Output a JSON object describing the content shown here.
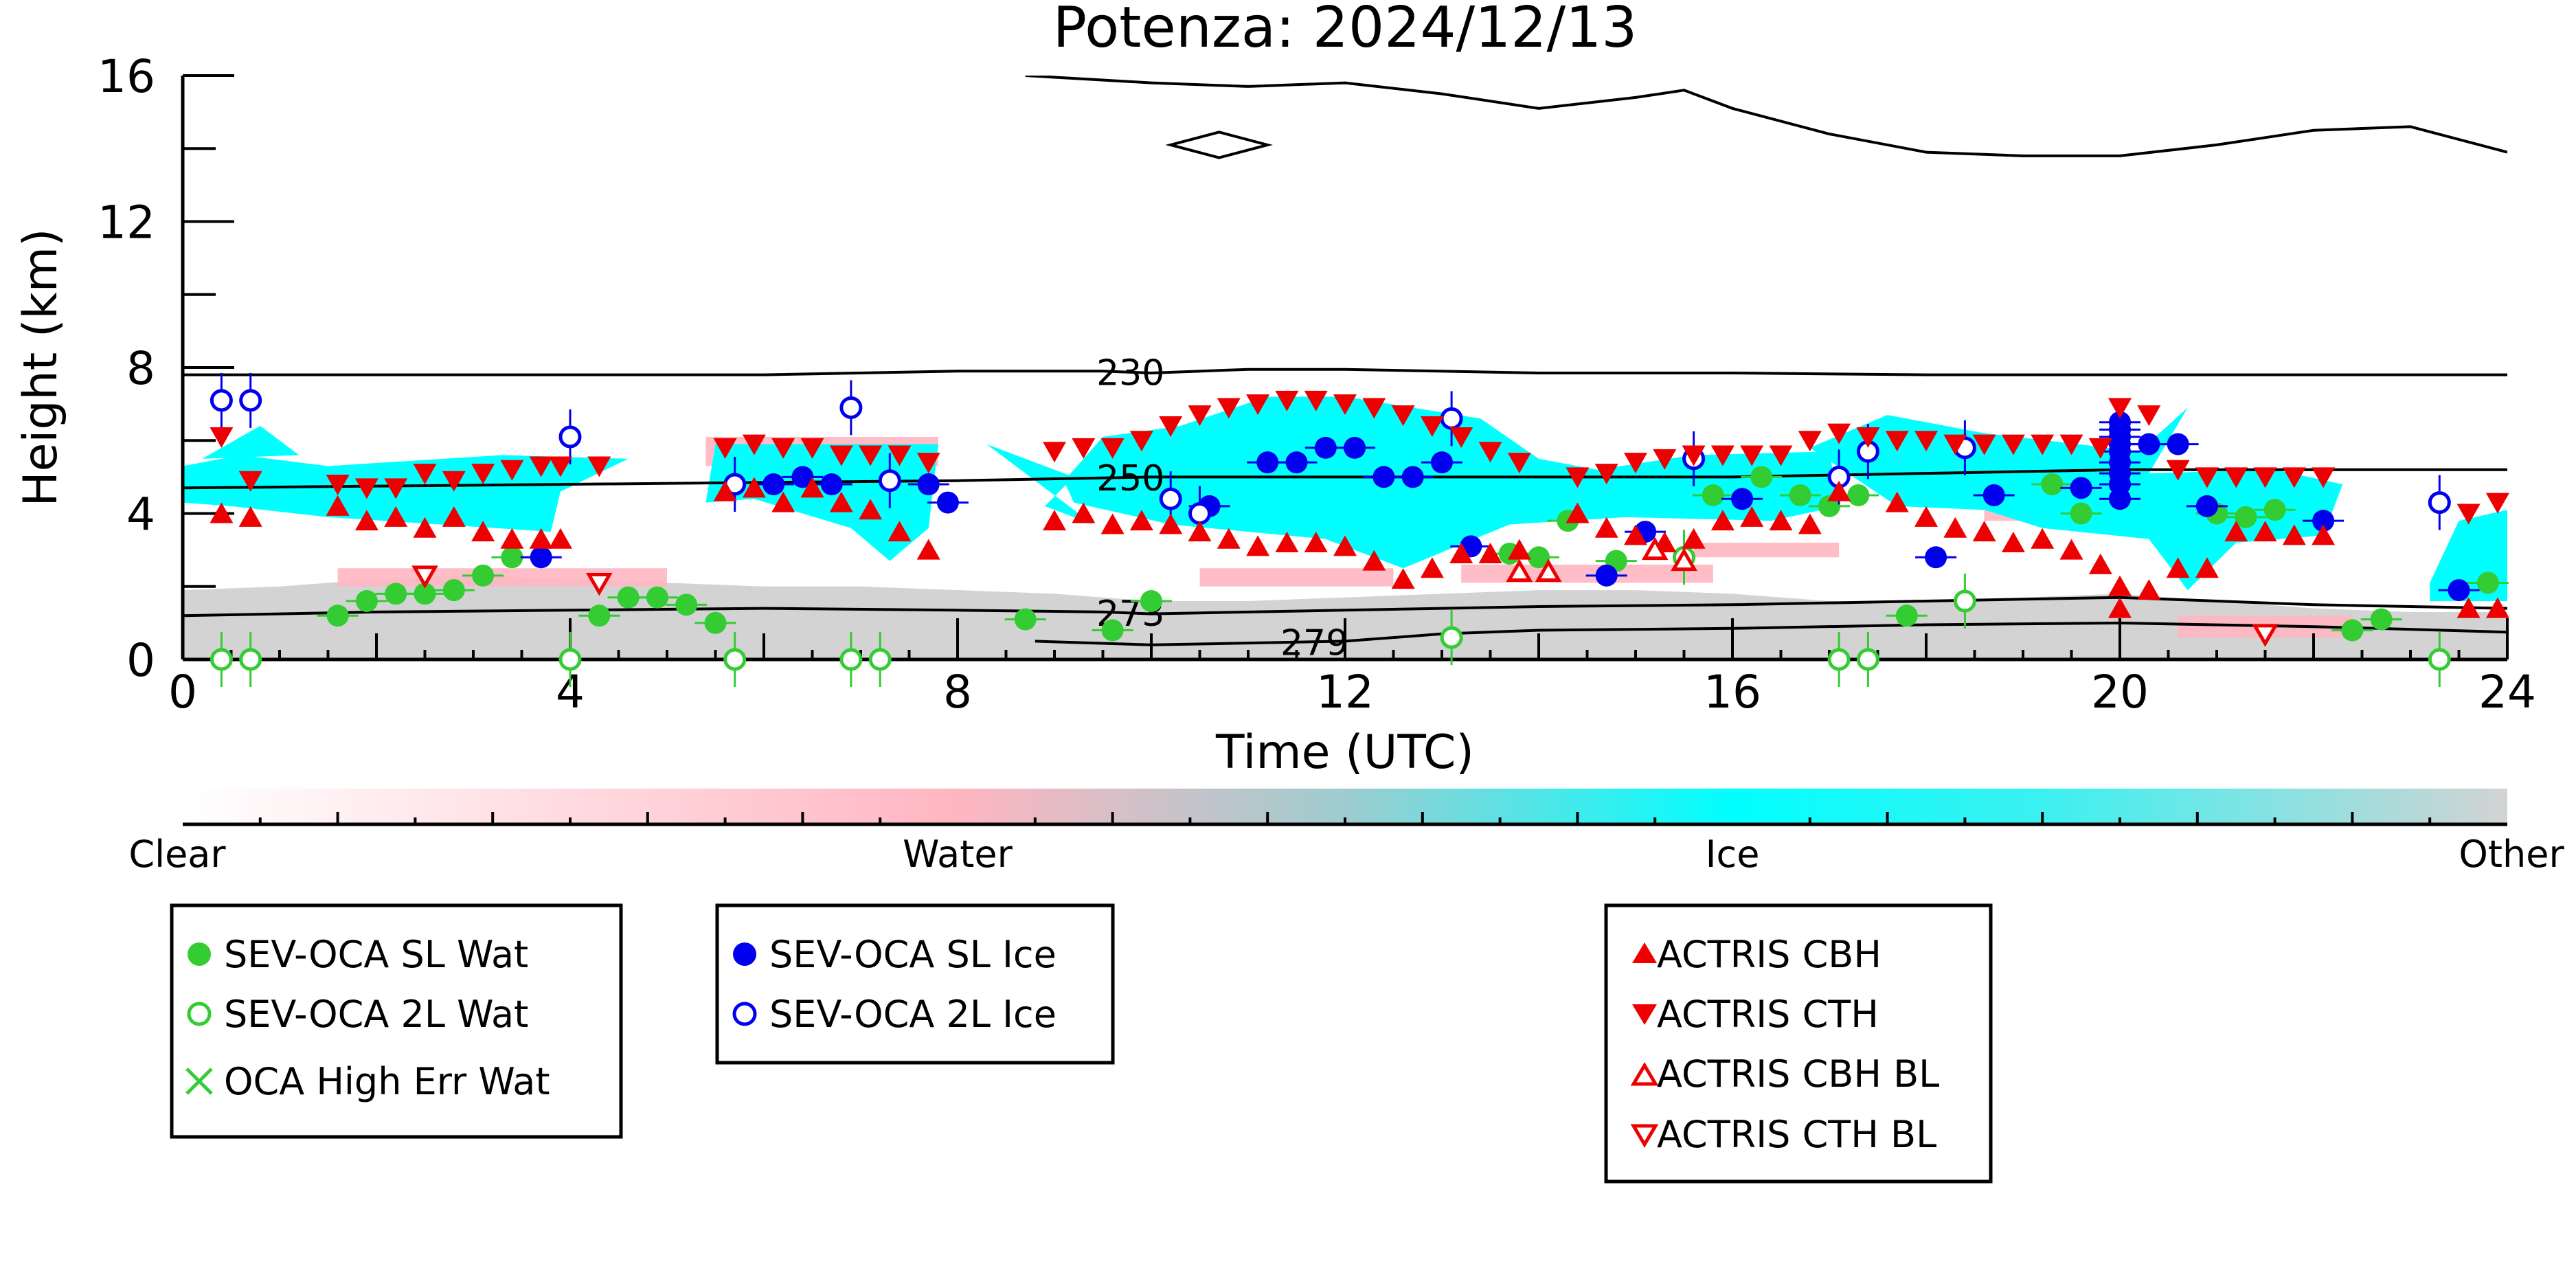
{
  "chart_data": {
    "type": "scatter",
    "title": "Potenza: 2024/12/13",
    "xlabel": "Time (UTC)",
    "ylabel": "Height (km)",
    "xlim": [
      0,
      24
    ],
    "ylim": [
      0,
      16
    ],
    "x_ticks": [
      0,
      4,
      8,
      12,
      16,
      20,
      24
    ],
    "y_ticks": [
      0,
      4,
      8,
      12,
      16
    ],
    "colorbar": {
      "labels": [
        "Clear",
        "Water",
        "Ice",
        "Other"
      ],
      "colors": {
        "clear": "#ffffff",
        "water": "#ffb6c1",
        "ice": "#00ffff",
        "other": "#d3d3d3"
      }
    },
    "isotherms": [
      {
        "label": "230",
        "label_x": 9.7,
        "x": [
          0,
          6,
          8,
          9.5,
          10,
          11,
          12,
          14,
          16,
          18,
          20,
          22,
          24
        ],
        "y": [
          7.8,
          7.8,
          7.9,
          7.9,
          7.85,
          7.95,
          7.95,
          7.85,
          7.85,
          7.8,
          7.8,
          7.8,
          7.8
        ]
      },
      {
        "label": "250",
        "label_x": 9.7,
        "x": [
          0,
          4,
          8,
          10,
          12,
          14,
          16,
          18,
          20,
          22,
          24
        ],
        "y": [
          4.7,
          4.8,
          4.9,
          5.0,
          5.0,
          5.0,
          5.0,
          5.1,
          5.2,
          5.2,
          5.2
        ]
      },
      {
        "label": "273",
        "label_x": 9.7,
        "x": [
          0,
          2,
          4,
          6,
          8,
          9.5,
          10,
          12,
          14,
          16,
          18,
          20,
          22,
          24
        ],
        "y": [
          1.2,
          1.3,
          1.35,
          1.4,
          1.35,
          1.3,
          1.25,
          1.35,
          1.45,
          1.5,
          1.6,
          1.7,
          1.5,
          1.4
        ]
      },
      {
        "label": "279",
        "label_x": 11.6,
        "x": [
          8.8,
          10,
          11,
          12,
          13,
          14,
          16,
          18,
          20,
          22,
          24
        ],
        "y": [
          0.5,
          0.4,
          0.45,
          0.5,
          0.7,
          0.8,
          0.85,
          0.95,
          1.0,
          0.9,
          0.75
        ]
      }
    ],
    "tropopause": {
      "x": [
        8.7,
        10,
        11,
        12,
        13,
        14,
        15,
        15.5,
        16,
        17,
        18,
        19,
        20,
        21,
        22,
        23,
        24
      ],
      "y": [
        16.0,
        15.8,
        15.7,
        15.8,
        15.5,
        15.1,
        15.4,
        15.6,
        15.1,
        14.4,
        13.9,
        13.8,
        13.8,
        14.1,
        14.5,
        14.6,
        13.9
      ]
    },
    "series": [
      {
        "name": "SEV-OCA SL Wat",
        "color": "#33cc33",
        "marker": "filled-circle",
        "x": [
          1.6,
          1.9,
          2.2,
          2.5,
          2.8,
          3.1,
          3.4,
          4.3,
          4.6,
          4.9,
          5.2,
          5.5,
          8.7,
          9.6,
          10.0,
          13.7,
          14.0,
          14.3,
          14.8,
          15.8,
          16.3,
          16.7,
          17.0,
          17.3,
          17.8,
          19.3,
          19.6,
          21.0,
          21.3,
          21.6,
          22.4,
          22.7,
          23.8
        ],
        "y": [
          1.2,
          1.6,
          1.8,
          1.8,
          1.9,
          2.3,
          2.8,
          1.2,
          1.7,
          1.7,
          1.5,
          1.0,
          1.1,
          0.8,
          1.6,
          2.9,
          2.8,
          3.8,
          2.7,
          4.5,
          5.0,
          4.5,
          4.2,
          4.5,
          1.2,
          4.8,
          4.0,
          4.0,
          3.9,
          4.1,
          0.8,
          1.1,
          2.1
        ]
      },
      {
        "name": "SEV-OCA 2L Wat",
        "color": "#33cc33",
        "marker": "open-circle",
        "x": [
          0.4,
          0.7,
          4.0,
          5.7,
          6.9,
          7.2,
          13.1,
          15.5,
          17.1,
          17.4,
          18.4,
          23.3
        ],
        "y": [
          0.0,
          0.0,
          0.0,
          0.0,
          0.0,
          0.0,
          0.6,
          2.8,
          0.0,
          0.0,
          1.6,
          0.0
        ]
      },
      {
        "name": "OCA High Err Wat",
        "color": "#33cc33",
        "marker": "x",
        "x": [],
        "y": []
      },
      {
        "name": "SEV-OCA SL Ice",
        "color": "#0000ee",
        "marker": "filled-circle",
        "x": [
          3.7,
          6.1,
          6.4,
          6.7,
          7.7,
          7.9,
          10.6,
          11.2,
          11.5,
          11.8,
          12.1,
          12.4,
          12.7,
          13.0,
          13.3,
          14.7,
          15.1,
          16.1,
          18.1,
          18.7,
          19.6,
          20.0,
          20.0,
          20.0,
          20.0,
          20.0,
          20.0,
          20.0,
          20.0,
          20.0,
          20.3,
          20.6,
          20.9,
          22.1,
          23.5
        ],
        "y": [
          2.8,
          4.8,
          5.0,
          4.8,
          4.8,
          4.3,
          4.2,
          5.4,
          5.4,
          5.8,
          5.8,
          5.0,
          5.0,
          5.4,
          3.1,
          2.3,
          3.5,
          4.4,
          2.8,
          4.5,
          4.7,
          4.4,
          4.8,
          5.1,
          5.4,
          5.7,
          5.9,
          6.1,
          6.3,
          6.5,
          5.9,
          5.9,
          4.2,
          3.8,
          1.9
        ]
      },
      {
        "name": "SEV-OCA 2L Ice",
        "color": "#0000ee",
        "marker": "open-circle",
        "x": [
          0.4,
          0.7,
          4.0,
          5.7,
          6.9,
          7.3,
          10.2,
          10.5,
          13.1,
          15.6,
          17.1,
          17.4,
          18.4,
          23.3
        ],
        "y": [
          7.1,
          7.1,
          6.1,
          4.8,
          6.9,
          4.9,
          4.4,
          4.0,
          6.6,
          5.5,
          5.0,
          5.7,
          5.8,
          4.3
        ]
      },
      {
        "name": "ACTRIS CBH",
        "color": "#ee0000",
        "marker": "filled-triangle-up",
        "x": [
          0.4,
          0.7,
          1.6,
          1.9,
          2.2,
          2.5,
          2.8,
          3.1,
          3.4,
          3.7,
          3.9,
          5.6,
          5.9,
          6.2,
          6.5,
          6.8,
          7.1,
          7.4,
          7.7,
          9.0,
          9.3,
          9.6,
          9.9,
          10.2,
          10.5,
          10.8,
          11.1,
          11.4,
          11.7,
          12.0,
          12.3,
          12.6,
          12.9,
          13.2,
          13.5,
          13.8,
          14.4,
          14.7,
          15.0,
          15.3,
          15.6,
          15.9,
          16.2,
          16.5,
          16.8,
          17.1,
          17.7,
          18.0,
          18.3,
          18.6,
          18.9,
          19.2,
          19.5,
          19.8,
          20.0,
          20.0,
          20.3,
          20.6,
          20.9,
          21.2,
          21.5,
          21.8,
          22.1,
          23.6,
          23.9
        ],
        "y": [
          4.0,
          3.9,
          4.2,
          3.8,
          3.9,
          3.6,
          3.9,
          3.5,
          3.3,
          3.3,
          3.3,
          4.6,
          4.7,
          4.3,
          4.7,
          4.3,
          4.1,
          3.5,
          3.0,
          3.8,
          4.0,
          3.7,
          3.8,
          3.7,
          3.5,
          3.3,
          3.1,
          3.2,
          3.2,
          3.1,
          2.7,
          2.2,
          2.5,
          2.9,
          2.9,
          3.0,
          4.0,
          3.6,
          3.4,
          3.2,
          3.3,
          3.8,
          3.9,
          3.8,
          3.7,
          4.6,
          4.3,
          3.9,
          3.6,
          3.5,
          3.2,
          3.3,
          3.0,
          2.6,
          2.0,
          1.4,
          1.9,
          2.5,
          2.5,
          3.5,
          3.5,
          3.4,
          3.4,
          1.4,
          1.4
        ]
      },
      {
        "name": "ACTRIS CTH",
        "color": "#ee0000",
        "marker": "filled-triangle-down",
        "x": [
          0.4,
          0.7,
          1.6,
          1.9,
          2.2,
          2.5,
          2.8,
          3.1,
          3.4,
          3.7,
          3.9,
          4.3,
          5.6,
          5.9,
          6.2,
          6.5,
          6.8,
          7.1,
          7.4,
          7.7,
          9.0,
          9.3,
          9.6,
          9.9,
          10.2,
          10.5,
          10.8,
          11.1,
          11.4,
          11.7,
          12.0,
          12.3,
          12.6,
          12.9,
          13.2,
          13.5,
          13.8,
          14.4,
          14.7,
          15.0,
          15.3,
          15.6,
          15.9,
          16.2,
          16.5,
          16.8,
          17.1,
          17.4,
          17.7,
          18.0,
          18.3,
          18.6,
          18.9,
          19.2,
          19.5,
          19.8,
          20.0,
          20.3,
          20.6,
          20.9,
          21.2,
          21.5,
          21.8,
          22.1,
          23.6,
          23.9
        ],
        "y": [
          6.1,
          4.9,
          4.8,
          4.7,
          4.7,
          5.1,
          4.9,
          5.1,
          5.2,
          5.3,
          5.3,
          5.3,
          5.8,
          5.9,
          5.8,
          5.8,
          5.6,
          5.6,
          5.6,
          5.4,
          5.7,
          5.8,
          5.8,
          6.0,
          6.4,
          6.7,
          6.9,
          7.0,
          7.1,
          7.1,
          7.0,
          6.9,
          6.7,
          6.4,
          6.1,
          5.7,
          5.4,
          5.0,
          5.1,
          5.4,
          5.5,
          5.6,
          5.6,
          5.6,
          5.6,
          6.0,
          6.2,
          6.1,
          6.0,
          6.0,
          5.9,
          5.9,
          5.9,
          5.9,
          5.9,
          5.8,
          6.9,
          6.7,
          5.2,
          5.0,
          5.0,
          5.0,
          5.0,
          5.0,
          4.0,
          4.3
        ]
      },
      {
        "name": "ACTRIS CBH BL",
        "color": "#ee0000",
        "marker": "open-triangle-up",
        "x": [
          13.8,
          14.1,
          15.2,
          15.5
        ],
        "y": [
          2.4,
          2.4,
          3.0,
          2.7
        ]
      },
      {
        "name": "ACTRIS CTH BL",
        "color": "#ee0000",
        "marker": "open-triangle-down",
        "x": [
          2.5,
          4.3,
          21.5
        ],
        "y": [
          2.3,
          2.1,
          0.7
        ]
      }
    ]
  }
}
